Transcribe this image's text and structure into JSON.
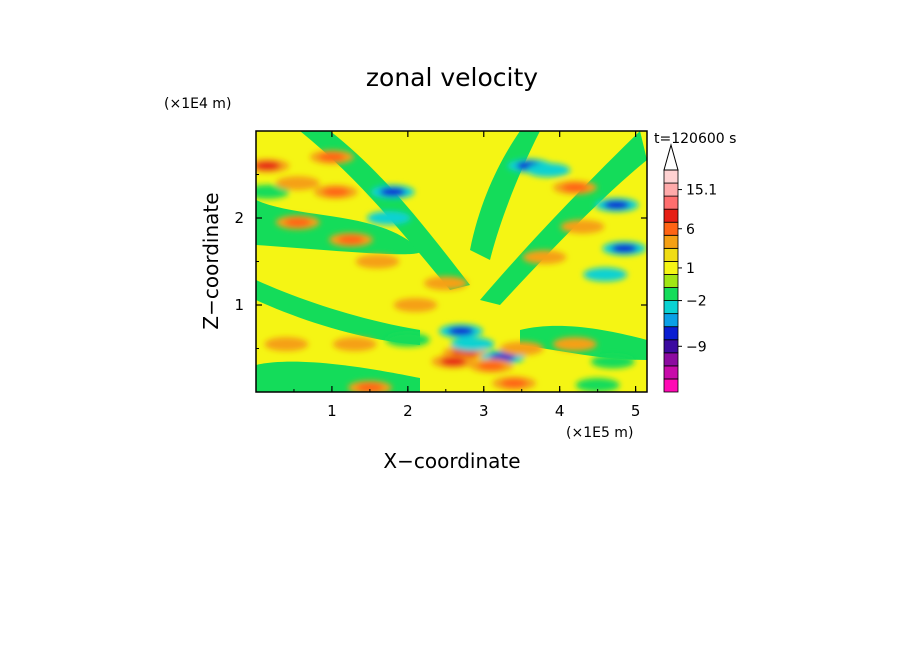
{
  "chart_data": {
    "type": "heatmap",
    "title": "zonal velocity",
    "xlabel": "X−coordinate",
    "ylabel": "Z−coordinate",
    "x_unit": "(×1E5 m)",
    "y_unit": "(×1E4 m)",
    "time_label": "t=120600 s",
    "xlim": [
      0,
      5.15
    ],
    "ylim": [
      0,
      3.0
    ],
    "x_ticks": [
      {
        "value": 1,
        "label": "1"
      },
      {
        "value": 2,
        "label": "2"
      },
      {
        "value": 3,
        "label": "3"
      },
      {
        "value": 4,
        "label": "4"
      },
      {
        "value": 5,
        "label": "5"
      }
    ],
    "y_ticks": [
      {
        "value": 1,
        "label": "1"
      },
      {
        "value": 2,
        "label": "2"
      }
    ],
    "colorbar": {
      "colors": [
        "#ff0ab4",
        "#c80aaa",
        "#8c0aa0",
        "#3c0aa0",
        "#0a1ed2",
        "#0aa0e6",
        "#0ad2d2",
        "#14dc5a",
        "#a0e614",
        "#f5f514",
        "#f0dc14",
        "#f5a014",
        "#ff6414",
        "#e61e14",
        "#ff6e6e",
        "#ffaaaa",
        "#ffd2d2"
      ],
      "labels": [
        {
          "text": "15.1",
          "slot": 15.5
        },
        {
          "text": "6",
          "slot": 12.5
        },
        {
          "text": "1",
          "slot": 9.5
        },
        {
          "text": "−2",
          "slot": 7.0
        },
        {
          "text": "−9",
          "slot": 3.5
        }
      ]
    },
    "field_features": [
      {
        "x": 0.15,
        "z": 2.6,
        "level": 13
      },
      {
        "x": 0.15,
        "z": 2.3,
        "level": 7
      },
      {
        "x": 0.55,
        "z": 2.4,
        "level": 11
      },
      {
        "x": 0.55,
        "z": 1.95,
        "level": 12
      },
      {
        "x": 1.0,
        "z": 2.7,
        "level": 12
      },
      {
        "x": 1.05,
        "z": 2.3,
        "level": 12
      },
      {
        "x": 1.25,
        "z": 1.75,
        "level": 12
      },
      {
        "x": 1.8,
        "z": 2.3,
        "level": 4
      },
      {
        "x": 1.75,
        "z": 2.0,
        "level": 6
      },
      {
        "x": 1.6,
        "z": 1.5,
        "level": 11
      },
      {
        "x": 2.1,
        "z": 1.0,
        "level": 11
      },
      {
        "x": 2.5,
        "z": 1.25,
        "level": 11
      },
      {
        "x": 3.6,
        "z": 2.6,
        "level": 4
      },
      {
        "x": 3.85,
        "z": 2.55,
        "level": 6
      },
      {
        "x": 4.75,
        "z": 2.15,
        "level": 4
      },
      {
        "x": 4.85,
        "z": 1.65,
        "level": 4
      },
      {
        "x": 4.6,
        "z": 1.35,
        "level": 6
      },
      {
        "x": 4.2,
        "z": 2.35,
        "level": 12
      },
      {
        "x": 4.3,
        "z": 1.9,
        "level": 11
      },
      {
        "x": 3.8,
        "z": 1.55,
        "level": 11
      },
      {
        "x": 2.7,
        "z": 0.7,
        "level": 4
      },
      {
        "x": 2.75,
        "z": 0.45,
        "level": 13
      },
      {
        "x": 2.6,
        "z": 0.35,
        "level": 13
      },
      {
        "x": 2.85,
        "z": 0.55,
        "level": 6
      },
      {
        "x": 3.25,
        "z": 0.4,
        "level": 4
      },
      {
        "x": 3.1,
        "z": 0.3,
        "level": 12
      },
      {
        "x": 3.5,
        "z": 0.5,
        "level": 11
      },
      {
        "x": 0.4,
        "z": 0.55,
        "level": 11
      },
      {
        "x": 1.3,
        "z": 0.55,
        "level": 11
      },
      {
        "x": 4.2,
        "z": 0.55,
        "level": 11
      },
      {
        "x": 4.7,
        "z": 0.35,
        "level": 7
      },
      {
        "x": 2.0,
        "z": 0.6,
        "level": 7
      },
      {
        "x": 3.4,
        "z": 0.1,
        "level": 12
      },
      {
        "x": 1.5,
        "z": 0.05,
        "level": 12
      },
      {
        "x": 4.5,
        "z": 0.08,
        "level": 7
      }
    ]
  }
}
